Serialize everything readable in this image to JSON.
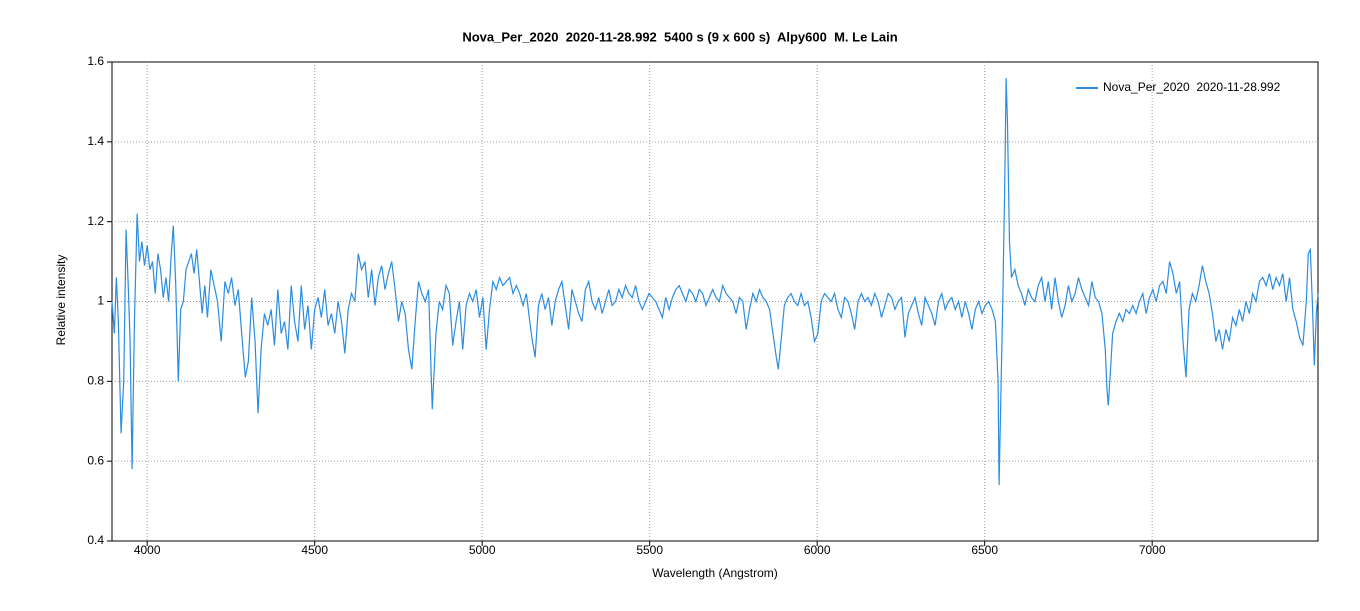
{
  "chart_data": {
    "type": "line",
    "title": "Nova_Per_2020  2020-11-28.992  5400 s (9 x 600 s)  Alpy600  M. Le Lain",
    "xlabel": "Wavelength (Angstrom)",
    "ylabel": "Relative intensity",
    "xlim": [
      3895,
      7495
    ],
    "ylim": [
      0.4,
      1.6
    ],
    "xticks": [
      4000,
      4500,
      5000,
      5500,
      6000,
      6500,
      7000
    ],
    "yticks": [
      0.4,
      0.6,
      0.8,
      1,
      1.2,
      1.4,
      1.6
    ],
    "grid": true,
    "legend": "upper right",
    "x": [
      3895,
      3902,
      3908,
      3914,
      3922,
      3930,
      3937,
      3943,
      3949,
      3955,
      3962,
      3970,
      3977,
      3984,
      3992,
      4000,
      4008,
      4016,
      4024,
      4032,
      4040,
      4048,
      4056,
      4064,
      4072,
      4078,
      4085,
      4093,
      4100,
      4108,
      4116,
      4124,
      4132,
      4140,
      4148,
      4156,
      4164,
      4172,
      4180,
      4190,
      4200,
      4210,
      4221,
      4232,
      4242,
      4252,
      4262,
      4272,
      4282,
      4293,
      4302,
      4312,
      4322,
      4331,
      4340,
      4350,
      4360,
      4370,
      4380,
      4390,
      4400,
      4410,
      4420,
      4430,
      4440,
      4450,
      4460,
      4470,
      4480,
      4490,
      4500,
      4510,
      4520,
      4530,
      4540,
      4550,
      4560,
      4570,
      4580,
      4590,
      4600,
      4610,
      4620,
      4630,
      4640,
      4650,
      4660,
      4670,
      4680,
      4690,
      4700,
      4710,
      4720,
      4730,
      4740,
      4750,
      4760,
      4770,
      4780,
      4790,
      4800,
      4810,
      4820,
      4830,
      4840,
      4851,
      4862,
      4872,
      4882,
      4892,
      4902,
      4912,
      4922,
      4932,
      4942,
      4952,
      4962,
      4972,
      4982,
      4992,
      5002,
      5012,
      5022,
      5032,
      5042,
      5052,
      5062,
      5072,
      5082,
      5092,
      5102,
      5112,
      5122,
      5132,
      5142,
      5150,
      5158,
      5168,
      5178,
      5188,
      5198,
      5208,
      5218,
      5228,
      5238,
      5248,
      5258,
      5268,
      5278,
      5288,
      5298,
      5308,
      5318,
      5328,
      5338,
      5348,
      5358,
      5368,
      5378,
      5388,
      5398,
      5408,
      5418,
      5428,
      5438,
      5448,
      5458,
      5468,
      5478,
      5488,
      5498,
      5508,
      5518,
      5528,
      5538,
      5548,
      5558,
      5568,
      5578,
      5588,
      5598,
      5608,
      5618,
      5628,
      5638,
      5648,
      5658,
      5668,
      5678,
      5688,
      5698,
      5708,
      5718,
      5728,
      5738,
      5748,
      5758,
      5768,
      5778,
      5788,
      5798,
      5808,
      5818,
      5828,
      5838,
      5848,
      5858,
      5868,
      5878,
      5884,
      5892,
      5902,
      5912,
      5922,
      5932,
      5942,
      5952,
      5962,
      5972,
      5982,
      5992,
      6002,
      6012,
      6022,
      6032,
      6042,
      6052,
      6062,
      6072,
      6082,
      6092,
      6102,
      6112,
      6122,
      6132,
      6142,
      6152,
      6162,
      6172,
      6182,
      6192,
      6202,
      6212,
      6222,
      6232,
      6242,
      6252,
      6262,
      6272,
      6282,
      6292,
      6302,
      6312,
      6322,
      6332,
      6342,
      6352,
      6362,
      6372,
      6382,
      6392,
      6402,
      6412,
      6422,
      6432,
      6442,
      6452,
      6462,
      6472,
      6482,
      6492,
      6502,
      6512,
      6522,
      6532,
      6540,
      6543,
      6548,
      6554,
      6560,
      6564,
      6568,
      6574,
      6580,
      6590,
      6600,
      6610,
      6620,
      6630,
      6640,
      6650,
      6660,
      6670,
      6680,
      6690,
      6700,
      6710,
      6720,
      6730,
      6740,
      6750,
      6760,
      6770,
      6780,
      6790,
      6800,
      6810,
      6820,
      6830,
      6840,
      6850,
      6860,
      6865,
      6869,
      6875,
      6882,
      6892,
      6902,
      6912,
      6922,
      6932,
      6942,
      6952,
      6962,
      6972,
      6982,
      6992,
      7002,
      7012,
      7022,
      7032,
      7042,
      7052,
      7062,
      7072,
      7082,
      7092,
      7101,
      7110,
      7120,
      7130,
      7140,
      7150,
      7160,
      7170,
      7180,
      7190,
      7200,
      7210,
      7220,
      7230,
      7240,
      7250,
      7260,
      7270,
      7280,
      7290,
      7300,
      7310,
      7320,
      7330,
      7340,
      7350,
      7360,
      7370,
      7380,
      7390,
      7400,
      7410,
      7420,
      7430,
      7440,
      7450,
      7460,
      7466,
      7472,
      7478,
      7484,
      7490,
      7495
    ],
    "series": [
      {
        "name": "Nova_Per_2020  2020-11-28.992",
        "color": "#2b8ce0",
        "values": [
          1.0,
          0.92,
          1.06,
          0.95,
          0.67,
          0.8,
          1.18,
          1.05,
          0.9,
          0.58,
          0.95,
          1.22,
          1.1,
          1.15,
          1.09,
          1.14,
          1.08,
          1.1,
          1.02,
          1.12,
          1.08,
          1.01,
          1.06,
          1.0,
          1.12,
          1.19,
          1.05,
          0.8,
          0.98,
          1.0,
          1.08,
          1.1,
          1.12,
          1.07,
          1.13,
          1.05,
          0.97,
          1.04,
          0.96,
          1.08,
          1.04,
          1.0,
          0.9,
          1.05,
          1.02,
          1.06,
          0.99,
          1.03,
          0.92,
          0.81,
          0.85,
          1.01,
          0.9,
          0.72,
          0.88,
          0.97,
          0.94,
          0.98,
          0.89,
          1.03,
          0.92,
          0.95,
          0.88,
          1.04,
          0.95,
          0.9,
          1.04,
          0.93,
          0.99,
          0.88,
          0.98,
          1.01,
          0.96,
          1.03,
          0.94,
          0.97,
          0.92,
          1.0,
          0.95,
          0.87,
          0.98,
          1.02,
          1.0,
          1.12,
          1.08,
          1.1,
          1.01,
          1.08,
          0.99,
          1.06,
          1.09,
          1.03,
          1.07,
          1.1,
          1.03,
          0.95,
          1.0,
          0.97,
          0.88,
          0.83,
          0.95,
          1.05,
          1.02,
          1.0,
          1.03,
          0.73,
          0.92,
          1.0,
          0.98,
          1.04,
          1.02,
          0.89,
          0.95,
          1.0,
          0.88,
          0.99,
          1.02,
          1.0,
          1.03,
          0.96,
          1.01,
          0.88,
          0.98,
          1.05,
          1.03,
          1.06,
          1.04,
          1.05,
          1.06,
          1.02,
          1.04,
          1.02,
          0.99,
          1.02,
          0.95,
          0.9,
          0.86,
          0.99,
          1.02,
          0.98,
          1.01,
          0.94,
          1.0,
          1.03,
          1.05,
          0.99,
          0.93,
          1.03,
          1.0,
          0.97,
          0.95,
          1.03,
          1.05,
          1.0,
          0.98,
          1.01,
          0.97,
          1.0,
          1.03,
          0.99,
          1.0,
          1.03,
          1.01,
          1.04,
          1.02,
          1.01,
          1.04,
          1.0,
          0.98,
          1.0,
          1.02,
          1.01,
          1.0,
          0.98,
          0.96,
          1.01,
          0.98,
          1.01,
          1.03,
          1.04,
          1.02,
          1.0,
          1.03,
          1.02,
          1.0,
          1.03,
          1.02,
          0.99,
          1.01,
          1.03,
          1.01,
          1.0,
          1.04,
          1.02,
          1.01,
          1.0,
          0.97,
          1.01,
          1.0,
          0.93,
          0.98,
          1.02,
          1.0,
          1.03,
          1.01,
          1.0,
          0.98,
          0.92,
          0.86,
          0.83,
          0.9,
          0.99,
          1.01,
          1.02,
          1.0,
          0.99,
          1.02,
          0.99,
          1.0,
          0.96,
          0.9,
          0.92,
          1.0,
          1.02,
          1.01,
          1.0,
          1.02,
          0.98,
          0.96,
          1.01,
          1.0,
          0.97,
          0.93,
          1.0,
          1.02,
          1.0,
          1.01,
          0.99,
          1.02,
          1.0,
          0.96,
          0.99,
          1.02,
          1.01,
          0.98,
          1.0,
          1.01,
          0.91,
          0.97,
          0.99,
          1.01,
          0.97,
          0.94,
          1.01,
          0.99,
          0.97,
          0.94,
          1.0,
          1.02,
          0.98,
          1.0,
          1.01,
          0.98,
          1.0,
          0.96,
          1.0,
          0.97,
          0.93,
          0.98,
          1.0,
          0.97,
          0.99,
          1.0,
          0.98,
          0.95,
          0.8,
          0.54,
          0.75,
          1.0,
          1.3,
          1.56,
          1.45,
          1.15,
          1.06,
          1.08,
          1.04,
          1.02,
          0.99,
          1.03,
          1.01,
          1.0,
          1.04,
          1.06,
          1.0,
          1.05,
          0.98,
          1.06,
          1.0,
          0.96,
          0.99,
          1.04,
          1.0,
          1.02,
          1.06,
          1.03,
          1.01,
          0.99,
          1.05,
          1.01,
          1.0,
          0.97,
          0.88,
          0.78,
          0.74,
          0.82,
          0.92,
          0.95,
          0.97,
          0.95,
          0.98,
          0.97,
          0.99,
          0.97,
          1.0,
          1.02,
          0.97,
          1.01,
          1.03,
          1.0,
          1.04,
          1.05,
          1.02,
          1.1,
          1.07,
          1.02,
          1.05,
          0.9,
          0.81,
          0.98,
          1.02,
          1.0,
          1.04,
          1.09,
          1.05,
          1.02,
          0.97,
          0.9,
          0.93,
          0.88,
          0.93,
          0.9,
          0.96,
          0.94,
          0.98,
          0.95,
          1.0,
          0.97,
          1.02,
          1.0,
          1.05,
          1.06,
          1.04,
          1.07,
          1.03,
          1.06,
          1.04,
          1.07,
          1.0,
          1.06,
          0.98,
          0.95,
          0.91,
          0.89,
          1.0,
          1.12,
          1.13,
          1.0,
          0.84,
          0.97,
          1.02
        ]
      }
    ]
  }
}
